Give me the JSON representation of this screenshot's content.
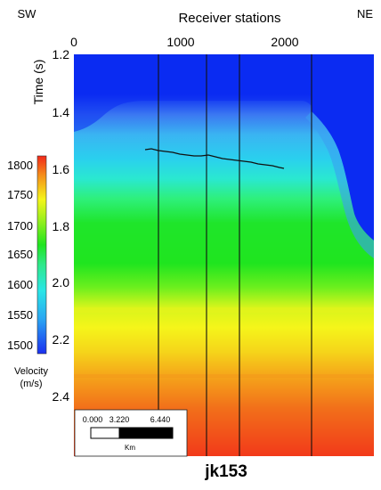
{
  "direction": {
    "left": "SW",
    "right": "NE"
  },
  "x_axis": {
    "label": "Receiver stations",
    "ticks": [
      0,
      1000,
      2000
    ]
  },
  "y_axis": {
    "label": "Time (s)",
    "ticks": [
      "1.2",
      "1.4",
      "1.6",
      "1.8",
      "2.0",
      "2.2",
      "2.4"
    ]
  },
  "colorbar": {
    "label_line1": "Velocity",
    "label_line2": "(m/s)",
    "ticks": [
      1500,
      1550,
      1600,
      1650,
      1700,
      1750,
      1800
    ]
  },
  "scalebar": {
    "labels": [
      "0.000",
      "3.220",
      "6.440"
    ],
    "unit": "Km"
  },
  "caption": "jk153",
  "colors": {
    "blue": "#0b2bf2",
    "cyan": "#2ac8f0",
    "green": "#1fe51f",
    "yellow": "#f5f51a",
    "red": "#f23a1a"
  }
}
